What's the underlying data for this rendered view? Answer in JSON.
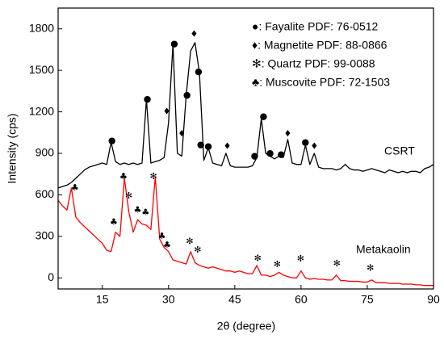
{
  "chart_data": {
    "type": "line",
    "xlabel": "2θ (degree)",
    "ylabel": "Intensity (cps)",
    "x": [
      5,
      6,
      7,
      8,
      9,
      10,
      11,
      12,
      13,
      14,
      15,
      16,
      17,
      18,
      19,
      20,
      21,
      22,
      23,
      24,
      25,
      26,
      27,
      28,
      29,
      30,
      31,
      32,
      33,
      34,
      35,
      36,
      37,
      38,
      39,
      40,
      41,
      42,
      43,
      44,
      45,
      46,
      47,
      48,
      49,
      50,
      51,
      52,
      53,
      54,
      55,
      56,
      57,
      58,
      59,
      60,
      61,
      62,
      63,
      64,
      65,
      66,
      67,
      68,
      69,
      70,
      71,
      72,
      73,
      74,
      75,
      76,
      77,
      78,
      79,
      80,
      81,
      82,
      83,
      84,
      85,
      86,
      87,
      88,
      89,
      90
    ],
    "series": [
      {
        "name": "CSRT",
        "color": "#000000",
        "values": [
          650,
          660,
          670,
          690,
          720,
          750,
          780,
          800,
          810,
          820,
          830,
          820,
          980,
          840,
          820,
          830,
          820,
          830,
          820,
          830,
          1290,
          830,
          840,
          850,
          870,
          1120,
          1690,
          900,
          880,
          1320,
          1640,
          1700,
          1480,
          850,
          940,
          830,
          820,
          810,
          900,
          810,
          800,
          800,
          800,
          800,
          810,
          870,
          1150,
          900,
          880,
          860,
          880,
          870,
          1000,
          830,
          820,
          820,
          960,
          820,
          900,
          800,
          790,
          790,
          790,
          780,
          790,
          820,
          790,
          780,
          780,
          770,
          780,
          790,
          780,
          770,
          760,
          780,
          770,
          760,
          770,
          760,
          770,
          770,
          760,
          790,
          800,
          820
        ]
      },
      {
        "name": "Metakaolin",
        "color": "#ff0000",
        "values": [
          560,
          520,
          490,
          650,
          440,
          400,
          370,
          340,
          310,
          280,
          250,
          200,
          190,
          330,
          300,
          720,
          480,
          330,
          420,
          390,
          380,
          350,
          730,
          280,
          220,
          190,
          130,
          120,
          110,
          100,
          190,
          110,
          90,
          80,
          70,
          80,
          70,
          60,
          50,
          50,
          40,
          50,
          40,
          30,
          30,
          90,
          20,
          20,
          10,
          20,
          40,
          20,
          10,
          0,
          0,
          50,
          0,
          -10,
          -5,
          -10,
          -10,
          -15,
          -15,
          20,
          -20,
          -20,
          -25,
          -25,
          -25,
          -30,
          -30,
          -15,
          -35,
          -35,
          -35,
          -40,
          -40,
          -40,
          -45,
          -45,
          -45,
          -50,
          -50,
          -55,
          -55,
          -55
        ]
      }
    ],
    "xlim": [
      5,
      90
    ],
    "xticks": [
      15,
      30,
      45,
      60,
      75,
      90
    ],
    "ylim": [
      -80,
      1950
    ],
    "yticks": [
      0,
      300,
      600,
      900,
      1200,
      1500,
      1800
    ],
    "legend": [
      "●: Fayalite PDF: 76-0512",
      "♦: Magnetite PDF: 88-0866",
      "✻: Quartz PDF: 99-0088",
      "♣: Muscovite PDF: 72-1503"
    ],
    "annotations": [
      {
        "x": 17.2,
        "y": 990,
        "label": "●"
      },
      {
        "x": 25.2,
        "y": 1290,
        "label": "●"
      },
      {
        "x": 29.6,
        "y": 1200,
        "label": "♦"
      },
      {
        "x": 31.3,
        "y": 1690,
        "label": "●"
      },
      {
        "x": 33,
        "y": 1040,
        "label": "♦"
      },
      {
        "x": 34.2,
        "y": 1320,
        "label": "●"
      },
      {
        "x": 35.8,
        "y": 1760,
        "label": "♦"
      },
      {
        "x": 36.8,
        "y": 1490,
        "label": "●"
      },
      {
        "x": 37.3,
        "y": 960,
        "label": "●"
      },
      {
        "x": 39,
        "y": 950,
        "label": "●"
      },
      {
        "x": 43.3,
        "y": 950,
        "label": "♦"
      },
      {
        "x": 49.5,
        "y": 880,
        "label": "●"
      },
      {
        "x": 51.5,
        "y": 1165,
        "label": "●"
      },
      {
        "x": 53,
        "y": 900,
        "label": "●"
      },
      {
        "x": 55.5,
        "y": 890,
        "label": "●"
      },
      {
        "x": 57,
        "y": 1040,
        "label": "♦"
      },
      {
        "x": 61,
        "y": 980,
        "label": "●"
      },
      {
        "x": 63,
        "y": 950,
        "label": "♦"
      },
      {
        "x": 8.8,
        "y": 650,
        "label": "♣"
      },
      {
        "x": 17.6,
        "y": 400,
        "label": "♣"
      },
      {
        "x": 19.8,
        "y": 730,
        "label": "♣"
      },
      {
        "x": 21,
        "y": 590,
        "label": "✻"
      },
      {
        "x": 23,
        "y": 490,
        "label": "♣"
      },
      {
        "x": 24.8,
        "y": 470,
        "label": "♣"
      },
      {
        "x": 26.6,
        "y": 730,
        "label": "✻"
      },
      {
        "x": 28.5,
        "y": 300,
        "label": "♣"
      },
      {
        "x": 29.7,
        "y": 235,
        "label": "♣"
      },
      {
        "x": 34.8,
        "y": 260,
        "label": "✻"
      },
      {
        "x": 36.6,
        "y": 200,
        "label": "✻"
      },
      {
        "x": 50.2,
        "y": 140,
        "label": "✻"
      },
      {
        "x": 54.6,
        "y": 95,
        "label": "✻"
      },
      {
        "x": 59.9,
        "y": 135,
        "label": "✻"
      },
      {
        "x": 68.1,
        "y": 100,
        "label": "✻"
      },
      {
        "x": 75.7,
        "y": 70,
        "label": "✻"
      }
    ]
  }
}
